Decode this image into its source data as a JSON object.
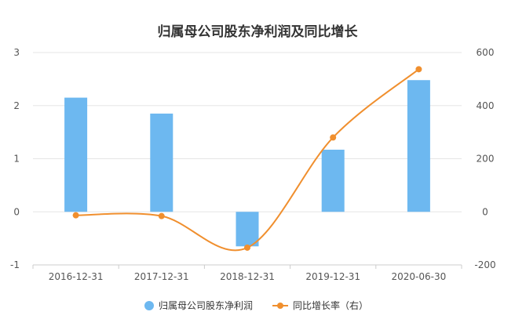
{
  "chart_data": {
    "type": "bar",
    "title": "归属母公司股东净利润及同比增长",
    "categories": [
      "2016-12-31",
      "2017-12-31",
      "2018-12-31",
      "2019-12-31",
      "2020-06-30"
    ],
    "series": [
      {
        "name": "归属母公司股东净利润",
        "type": "bar",
        "axis": "left",
        "color": "#6db8f0",
        "values": [
          2.15,
          1.85,
          -0.65,
          1.17,
          2.48
        ]
      },
      {
        "name": "同比增长率（右）",
        "type": "line",
        "axis": "right",
        "color": "#f08f2e",
        "values": [
          -13,
          -16,
          -135,
          280,
          537
        ]
      }
    ],
    "y_left": {
      "min": -1,
      "max": 3,
      "ticks": [
        "3",
        "2",
        "1",
        "0",
        "-1"
      ]
    },
    "y_right": {
      "min": -200,
      "max": 600,
      "ticks": [
        "600",
        "400",
        "200",
        "0",
        "-200"
      ]
    },
    "grid": true,
    "legend_position": "bottom"
  }
}
